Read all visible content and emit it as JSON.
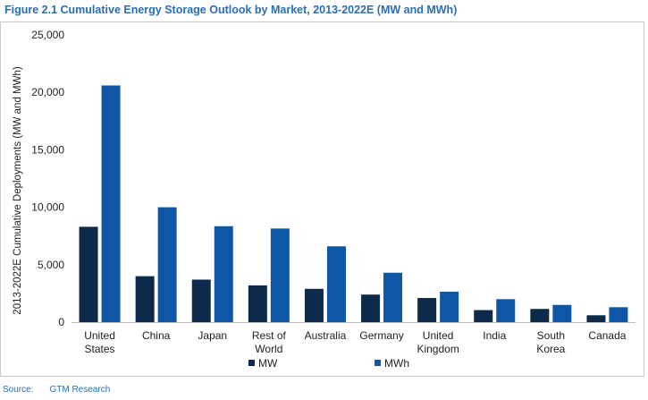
{
  "figure": {
    "title": "Figure 2.1  Cumulative Energy Storage Outlook by Market, 2013-2022E (MW and MWh)",
    "source_label": "Source:",
    "source_value": "GTM Research"
  },
  "colors": {
    "mw": "#0e2a4a",
    "mwh": "#0f56a6",
    "axis": "#bfbfbf",
    "text": "#222222",
    "title": "#2a6fb5"
  },
  "chart_data": {
    "type": "bar",
    "title": "Figure 2.1  Cumulative Energy Storage Outlook by Market, 2013-2022E (MW and MWh)",
    "xlabel": "",
    "ylabel": "2013-2022E Cumulative Deployments (MW and MWh)",
    "ylim": [
      0,
      25000
    ],
    "yticks": [
      0,
      5000,
      10000,
      15000,
      20000,
      25000
    ],
    "ytick_labels": [
      "0",
      "5,000",
      "10,000",
      "15,000",
      "20,000",
      "25,000"
    ],
    "grid": false,
    "legend_position": "bottom",
    "categories": [
      [
        "United",
        "States"
      ],
      [
        "China"
      ],
      [
        "Japan"
      ],
      [
        "Rest of",
        "World"
      ],
      [
        "Australia"
      ],
      [
        "Germany"
      ],
      [
        "United",
        "Kingdom"
      ],
      [
        "India"
      ],
      [
        "South",
        "Korea"
      ],
      [
        "Canada"
      ]
    ],
    "series": [
      {
        "name": "MW",
        "color": "#0e2a4a",
        "values": [
          8300,
          4000,
          3700,
          3200,
          2900,
          2400,
          2100,
          1050,
          1150,
          600
        ]
      },
      {
        "name": "MWh",
        "color": "#0f56a6",
        "values": [
          20600,
          10000,
          8350,
          8150,
          6600,
          4300,
          2650,
          2000,
          1500,
          1300
        ]
      }
    ]
  }
}
